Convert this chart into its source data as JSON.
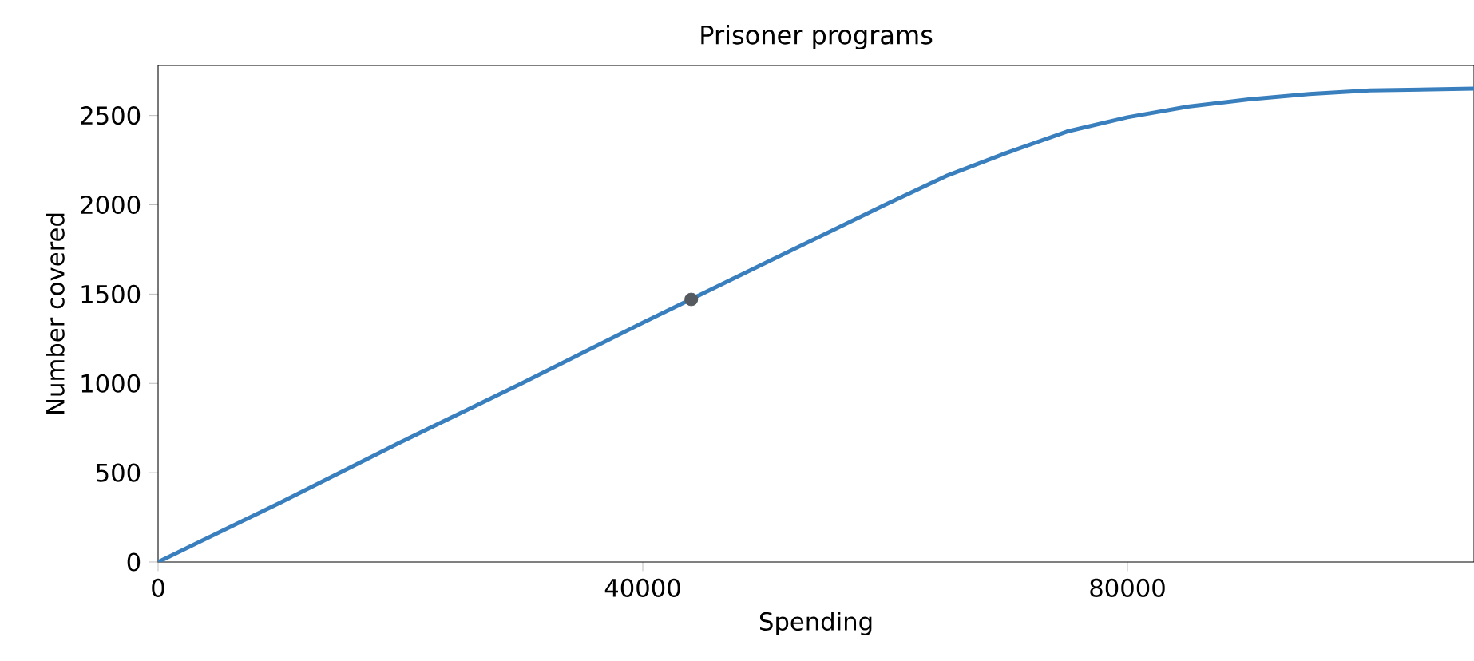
{
  "chart_data": {
    "type": "line",
    "title": "Prisoner programs",
    "xlabel": "Spending",
    "ylabel": "Number covered",
    "xlim": [
      0,
      108600
    ],
    "ylim": [
      0,
      2780
    ],
    "xticks": [
      0,
      40000,
      80000
    ],
    "yticks": [
      0,
      500,
      1000,
      1500,
      2000,
      2500
    ],
    "series": [
      {
        "color": "#3a7fbd",
        "marker": "none",
        "x": [
          0,
          10000,
          20000,
          30000,
          40000,
          50000,
          60000,
          65000,
          70000,
          75000,
          80000,
          85000,
          90000,
          95000,
          100000,
          108600
        ],
        "values": [
          0,
          330,
          670,
          1000,
          1340,
          1670,
          2000,
          2160,
          2290,
          2410,
          2490,
          2550,
          2590,
          2620,
          2640,
          2650
        ]
      },
      {
        "type": "scatter",
        "color": "#555a60",
        "marker": "circle",
        "x": [
          44000
        ],
        "values": [
          1470
        ]
      }
    ]
  }
}
